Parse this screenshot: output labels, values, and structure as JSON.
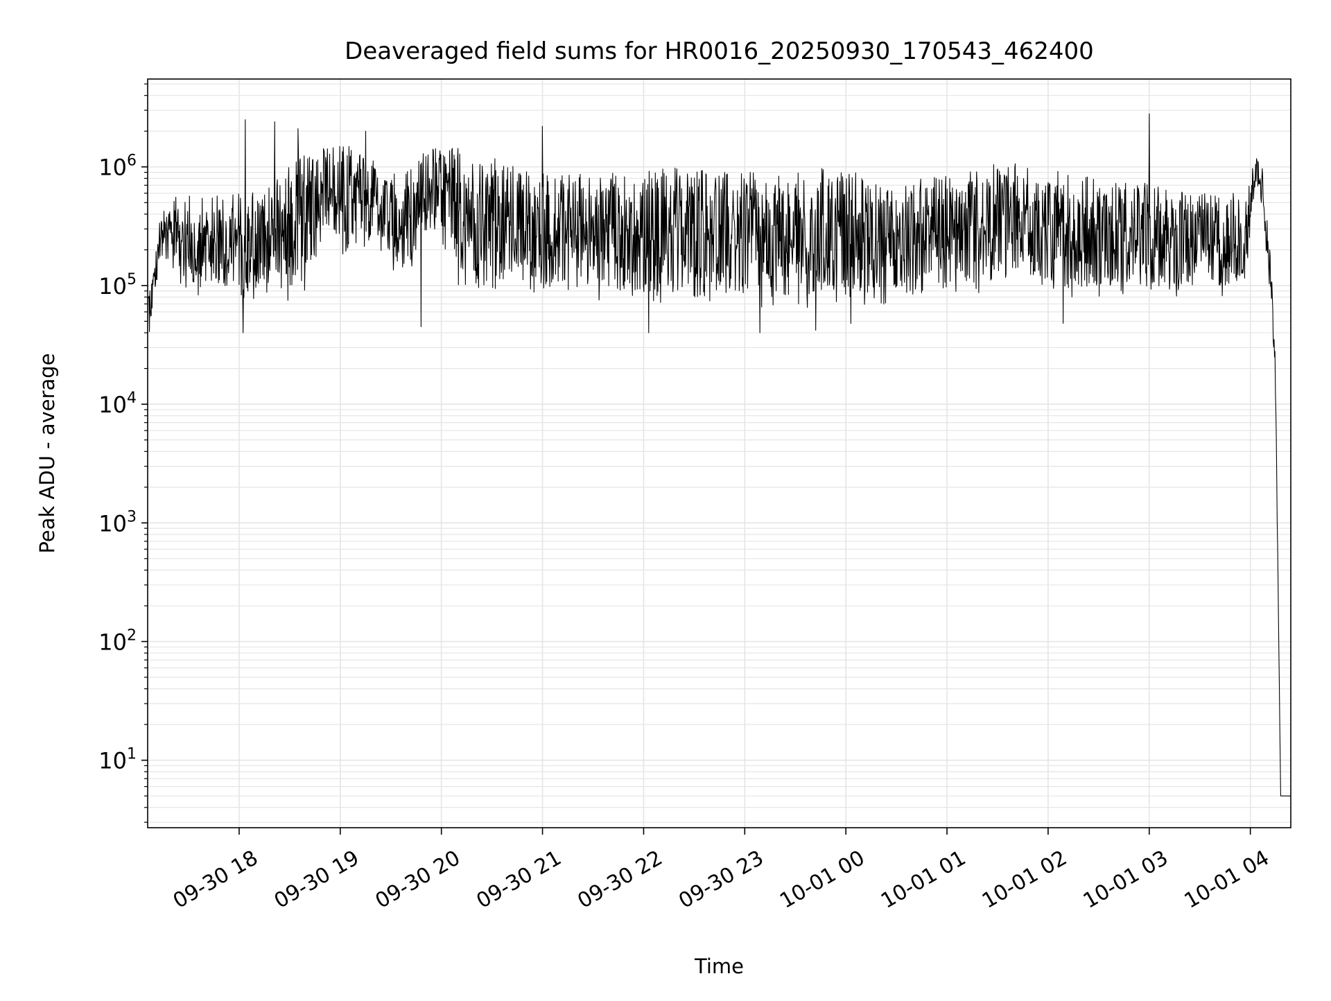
{
  "chart_data": {
    "type": "line",
    "title": "Deaveraged field sums for HR0016_20250930_170543_462400",
    "xlabel": "Time",
    "ylabel": "Peak ADU - average",
    "y_scale": "log",
    "ylim": [
      2.7,
      5500000
    ],
    "xlim": [
      "2025-09-30 17:05:43",
      "2025-10-01 04:24:00"
    ],
    "grid": true,
    "legend": "none",
    "line_color": "#000000",
    "grid_color": "#e5e5e5",
    "x_tick_values": [
      "2025-09-30 18:00",
      "2025-09-30 19:00",
      "2025-09-30 20:00",
      "2025-09-30 21:00",
      "2025-09-30 22:00",
      "2025-09-30 23:00",
      "2025-10-01 00:00",
      "2025-10-01 01:00",
      "2025-10-01 02:00",
      "2025-10-01 03:00",
      "2025-10-01 04:00"
    ],
    "x_tick_labels": [
      "09-30 18",
      "09-30 19",
      "09-30 20",
      "09-30 21",
      "09-30 22",
      "09-30 23",
      "10-01 00",
      "10-01 01",
      "10-01 02",
      "10-01 03",
      "10-01 04"
    ],
    "y_tick_values": [
      10,
      100,
      1000,
      10000,
      100000,
      1000000
    ],
    "y_tick_labels": [
      {
        "base": "10",
        "exp": "1"
      },
      {
        "base": "10",
        "exp": "2"
      },
      {
        "base": "10",
        "exp": "3"
      },
      {
        "base": "10",
        "exp": "4"
      },
      {
        "base": "10",
        "exp": "5"
      },
      {
        "base": "10",
        "exp": "6"
      }
    ],
    "series": [
      {
        "name": "field sums",
        "note": "dense noisy trace; envelope values below (hours since 2025-09-30 00:00, ADU)",
        "envelope_hours": [
          17.1,
          17.15,
          17.22,
          17.4,
          17.6,
          17.85,
          18.05,
          18.4,
          18.65,
          18.85,
          19.05,
          19.3,
          19.6,
          19.9,
          20.2,
          20.5,
          20.8,
          21.1,
          21.4,
          21.7,
          22.0,
          22.3,
          22.6,
          22.9,
          23.2,
          23.5,
          23.8,
          24.1,
          24.4,
          24.7,
          25.0,
          25.3,
          25.6,
          25.9,
          26.2,
          26.5,
          26.8,
          27.1,
          27.4,
          27.7,
          27.95,
          28.05,
          28.12,
          28.18,
          28.22,
          28.25,
          28.3,
          28.36,
          28.4
        ],
        "envelope_low": [
          30000,
          60000,
          150000,
          100000,
          80000,
          80000,
          70000,
          70000,
          80000,
          300000,
          120000,
          250000,
          100000,
          250000,
          90000,
          90000,
          80000,
          80000,
          80000,
          70000,
          65000,
          65000,
          70000,
          65000,
          60000,
          65000,
          60000,
          60000,
          70000,
          80000,
          70000,
          80000,
          90000,
          90000,
          80000,
          80000,
          80000,
          80000,
          80000,
          80000,
          90000,
          700000,
          400000,
          100000,
          40000,
          10000,
          5,
          5,
          5
        ],
        "envelope_high": [
          120000,
          140000,
          400000,
          600000,
          550000,
          600000,
          700000,
          800000,
          1600000,
          1600000,
          1600000,
          1200000,
          800000,
          1600000,
          1500000,
          1200000,
          1000000,
          900000,
          900000,
          900000,
          1000000,
          1000000,
          1000000,
          900000,
          900000,
          900000,
          1000000,
          900000,
          700000,
          800000,
          900000,
          1000000,
          1100000,
          1000000,
          900000,
          800000,
          800000,
          700000,
          600000,
          600000,
          700000,
          1300000,
          1000000,
          300000,
          100000,
          20000,
          5,
          5,
          5
        ],
        "spikes": [
          {
            "hour": 18.06,
            "value": 2500000
          },
          {
            "hour": 18.35,
            "value": 2400000
          },
          {
            "hour": 18.58,
            "value": 2100000
          },
          {
            "hour": 19.25,
            "value": 2000000
          },
          {
            "hour": 21.0,
            "value": 2200000
          },
          {
            "hour": 19.8,
            "value": 45000
          },
          {
            "hour": 22.05,
            "value": 40000
          },
          {
            "hour": 23.15,
            "value": 40000
          },
          {
            "hour": 23.7,
            "value": 42000
          },
          {
            "hour": 24.05,
            "value": 48000
          },
          {
            "hour": 26.15,
            "value": 48000
          },
          {
            "hour": 27.0,
            "value": 2800000
          },
          {
            "hour": 18.04,
            "value": 40000
          }
        ]
      }
    ]
  }
}
